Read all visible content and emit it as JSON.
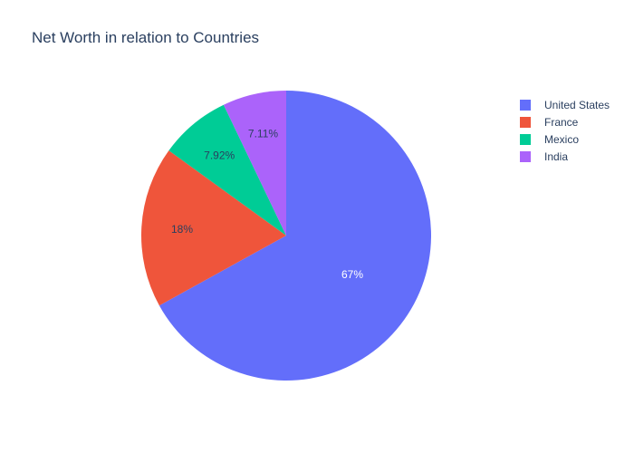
{
  "chart_data": {
    "type": "pie",
    "title": "Net Worth in relation to Countries",
    "categories": [
      "United States",
      "France",
      "Mexico",
      "India"
    ],
    "values": [
      67,
      18,
      7.92,
      7.11
    ],
    "labels": [
      "67%",
      "18%",
      "7.92%",
      "7.11%"
    ],
    "colors": [
      "#636efa",
      "#ef553b",
      "#00cc96",
      "#ab63fa"
    ],
    "label_colors": [
      "#ffffff",
      "#2a3f5f",
      "#2a3f5f",
      "#2a3f5f"
    ],
    "legend_position": "top-right",
    "direction": "clockwise",
    "start": "top"
  }
}
